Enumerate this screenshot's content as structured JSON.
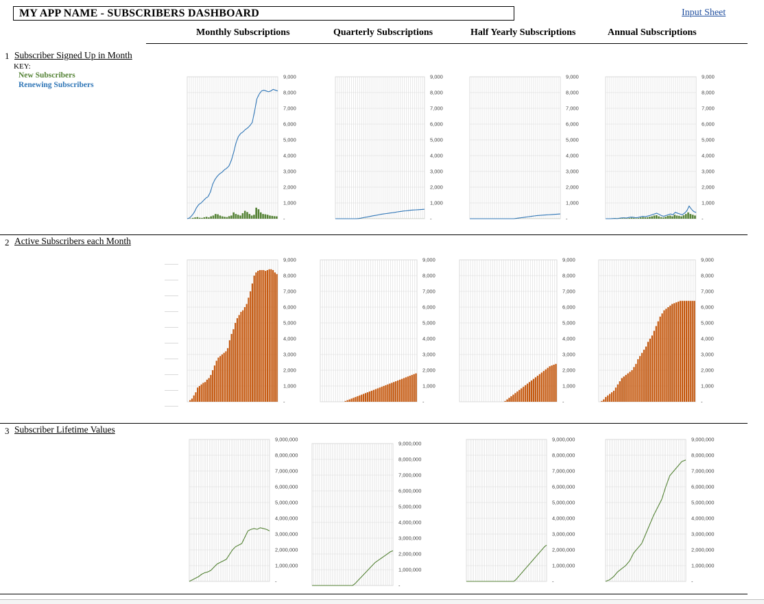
{
  "header": {
    "title": "MY APP NAME - SUBSCRIBERS DASHBOARD",
    "input_link": "Input Sheet"
  },
  "columns": [
    "Monthly Subscriptions",
    "Quarterly Subscriptions",
    "Half Yearly Subscriptions",
    "Annual Subscriptions"
  ],
  "sections": [
    {
      "num": "1",
      "title": "Subscriber Signed Up in  Month"
    },
    {
      "num": "2",
      "title": "Active Subscribers each Month"
    },
    {
      "num": "3",
      "title": "Subscriber Lifetime Values"
    }
  ],
  "key": {
    "label": "KEY:",
    "new": "New Subscribers",
    "renewing": "Renewing Subscribers"
  },
  "colors": {
    "new": "#548235",
    "renewing": "#2e75b6",
    "active": "#c55a11",
    "ltv": "#548235",
    "grid": "#d9d9d9"
  },
  "chart_data": [
    {
      "id": "signup-monthly",
      "type": "line",
      "ylim": [
        0,
        9000
      ],
      "yticks": [
        "9,000",
        "8,000",
        "7,000",
        "6,000",
        "5,000",
        "4,000",
        "3,000",
        "2,000",
        "1,000",
        "-"
      ],
      "series": [
        {
          "values": [
            0,
            50,
            200,
            400,
            700,
            900,
            1000,
            1150,
            1300,
            1400,
            1700,
            2200,
            2500,
            2700,
            2850,
            2950,
            3100,
            3200,
            3350,
            3700,
            4200,
            4800,
            5200,
            5400,
            5500,
            5650,
            5750,
            5900,
            6100,
            6800,
            7600,
            7900,
            8100,
            8150,
            8100,
            8050,
            8100,
            8200,
            8150,
            8100
          ]
        },
        {
          "type": "bar",
          "values": [
            0,
            20,
            50,
            80,
            100,
            60,
            50,
            90,
            120,
            80,
            150,
            200,
            300,
            280,
            200,
            150,
            120,
            100,
            160,
            200,
            400,
            300,
            250,
            200,
            350,
            500,
            420,
            300,
            200,
            250,
            700,
            600,
            400,
            300,
            280,
            250,
            200,
            180,
            160,
            150
          ]
        }
      ]
    },
    {
      "id": "signup-quarterly",
      "type": "line",
      "ylim": [
        0,
        9000
      ],
      "yticks": [
        "9,000",
        "8,000",
        "7,000",
        "6,000",
        "5,000",
        "4,000",
        "3,000",
        "2,000",
        "1,000",
        "-"
      ],
      "series": [
        {
          "values": [
            0,
            0,
            0,
            0,
            0,
            0,
            0,
            0,
            0,
            0,
            10,
            30,
            60,
            90,
            110,
            140,
            170,
            200,
            220,
            250,
            280,
            300,
            320,
            340,
            360,
            380,
            400,
            430,
            450,
            470,
            490,
            500,
            520,
            540,
            550,
            560,
            570,
            580,
            590,
            600
          ]
        },
        {
          "type": "bar",
          "values": [
            0,
            0,
            0,
            0,
            0,
            0,
            0,
            0,
            0,
            0,
            5,
            5,
            5,
            5,
            5,
            5,
            5,
            5,
            5,
            5,
            5,
            5,
            5,
            5,
            5,
            5,
            5,
            5,
            5,
            5,
            5,
            5,
            5,
            5,
            5,
            5,
            5,
            5,
            5,
            5
          ]
        }
      ]
    },
    {
      "id": "signup-halfyearly",
      "type": "line",
      "ylim": [
        0,
        9000
      ],
      "yticks": [
        "9,000",
        "8,000",
        "7,000",
        "6,000",
        "5,000",
        "4,000",
        "3,000",
        "2,000",
        "1,000",
        "-"
      ],
      "series": [
        {
          "values": [
            0,
            0,
            0,
            0,
            0,
            0,
            0,
            0,
            0,
            0,
            0,
            0,
            0,
            0,
            0,
            0,
            0,
            0,
            0,
            0,
            20,
            40,
            60,
            80,
            100,
            120,
            140,
            160,
            180,
            200,
            210,
            220,
            230,
            240,
            250,
            260,
            270,
            280,
            290,
            300
          ]
        },
        {
          "type": "bar",
          "values": [
            0,
            0,
            0,
            0,
            0,
            0,
            0,
            0,
            0,
            0,
            0,
            0,
            0,
            0,
            0,
            0,
            0,
            0,
            0,
            0,
            5,
            5,
            5,
            5,
            5,
            5,
            5,
            5,
            5,
            5,
            5,
            5,
            5,
            5,
            5,
            5,
            5,
            5,
            5,
            5
          ]
        }
      ]
    },
    {
      "id": "signup-annual",
      "type": "line",
      "ylim": [
        0,
        9000
      ],
      "yticks": [
        "9,000",
        "8,000",
        "7,000",
        "6,000",
        "5,000",
        "4,000",
        "3,000",
        "2,000",
        "1,000",
        "-"
      ],
      "series": [
        {
          "values": [
            0,
            0,
            0,
            10,
            20,
            10,
            30,
            50,
            60,
            40,
            80,
            100,
            90,
            60,
            80,
            120,
            150,
            130,
            160,
            200,
            250,
            300,
            350,
            280,
            200,
            150,
            200,
            250,
            300,
            250,
            400,
            350,
            300,
            250,
            350,
            500,
            800,
            600,
            450,
            400
          ]
        },
        {
          "type": "bar",
          "values": [
            0,
            0,
            0,
            5,
            10,
            5,
            20,
            30,
            30,
            20,
            40,
            60,
            50,
            30,
            40,
            80,
            100,
            80,
            90,
            120,
            150,
            200,
            220,
            150,
            100,
            80,
            120,
            180,
            200,
            150,
            250,
            200,
            180,
            150,
            220,
            300,
            400,
            300,
            250,
            200
          ]
        }
      ]
    },
    {
      "id": "active-monthly",
      "type": "bar",
      "ylim": [
        0,
        9000
      ],
      "yticks": [
        "9,000",
        "8,000",
        "7,000",
        "6,000",
        "5,000",
        "4,000",
        "3,000",
        "2,000",
        "1,000",
        "-"
      ],
      "values": [
        0,
        100,
        200,
        400,
        600,
        900,
        1000,
        1100,
        1200,
        1250,
        1400,
        1500,
        1700,
        2000,
        2300,
        2600,
        2800,
        2900,
        3000,
        3100,
        3200,
        3400,
        3900,
        4300,
        4600,
        5000,
        5300,
        5500,
        5700,
        5800,
        6000,
        6200,
        6600,
        7000,
        7500,
        8000,
        8200,
        8300,
        8350,
        8350,
        8350,
        8300,
        8350,
        8400,
        8400,
        8350,
        8200,
        8100
      ]
    },
    {
      "id": "active-quarterly",
      "type": "bar",
      "ylim": [
        0,
        9000
      ],
      "yticks": [
        "9,000",
        "8,000",
        "7,000",
        "6,000",
        "5,000",
        "4,000",
        "3,000",
        "2,000",
        "1,000",
        "-"
      ],
      "values": [
        0,
        0,
        0,
        0,
        0,
        0,
        0,
        0,
        0,
        0,
        0,
        0,
        50,
        100,
        150,
        200,
        250,
        300,
        350,
        400,
        450,
        500,
        550,
        600,
        650,
        700,
        750,
        800,
        850,
        900,
        950,
        1000,
        1050,
        1100,
        1150,
        1200,
        1250,
        1300,
        1350,
        1400,
        1450,
        1500,
        1550,
        1600,
        1650,
        1700,
        1750,
        1800
      ]
    },
    {
      "id": "active-halfyearly",
      "type": "bar",
      "ylim": [
        0,
        9000
      ],
      "yticks": [
        "9,000",
        "8,000",
        "7,000",
        "6,000",
        "5,000",
        "4,000",
        "3,000",
        "2,000",
        "1,000",
        "-"
      ],
      "values": [
        0,
        0,
        0,
        0,
        0,
        0,
        0,
        0,
        0,
        0,
        0,
        0,
        0,
        0,
        0,
        0,
        0,
        0,
        0,
        0,
        0,
        0,
        50,
        150,
        250,
        350,
        450,
        550,
        650,
        750,
        850,
        950,
        1050,
        1150,
        1250,
        1350,
        1450,
        1550,
        1650,
        1750,
        1850,
        1950,
        2050,
        2150,
        2250,
        2300,
        2350,
        2400
      ]
    },
    {
      "id": "active-annual",
      "type": "bar",
      "ylim": [
        0,
        9000
      ],
      "yticks": [
        "9,000",
        "8,000",
        "7,000",
        "6,000",
        "5,000",
        "4,000",
        "3,000",
        "2,000",
        "1,000",
        "-"
      ],
      "values": [
        0,
        50,
        150,
        300,
        400,
        500,
        600,
        700,
        900,
        1100,
        1300,
        1500,
        1600,
        1700,
        1800,
        1900,
        2000,
        2200,
        2400,
        2700,
        2900,
        3100,
        3300,
        3500,
        3800,
        4000,
        4200,
        4500,
        4800,
        5100,
        5400,
        5600,
        5800,
        5900,
        6000,
        6100,
        6200,
        6250,
        6300,
        6350,
        6400,
        6400,
        6400,
        6400,
        6400,
        6400,
        6400,
        6400
      ]
    },
    {
      "id": "ltv-monthly",
      "type": "line",
      "ylim": [
        0,
        9000000
      ],
      "yticks": [
        "9,000,000",
        "8,000,000",
        "7,000,000",
        "6,000,000",
        "5,000,000",
        "4,000,000",
        "3,000,000",
        "2,000,000",
        "1,000,000",
        "-"
      ],
      "values": [
        0,
        100000,
        200000,
        300000,
        450000,
        550000,
        600000,
        700000,
        900000,
        1100000,
        1200000,
        1300000,
        1400000,
        1700000,
        2000000,
        2200000,
        2300000,
        2400000,
        2800000,
        3200000,
        3300000,
        3350000,
        3300000,
        3400000,
        3350000,
        3300000,
        3200000
      ]
    },
    {
      "id": "ltv-quarterly",
      "type": "line",
      "ylim": [
        0,
        9000000
      ],
      "yticks": [
        "9,000,000",
        "8,000,000",
        "7,000,000",
        "6,000,000",
        "5,000,000",
        "4,000,000",
        "3,000,000",
        "2,000,000",
        "1,000,000",
        "-"
      ],
      "values": [
        0,
        0,
        0,
        0,
        0,
        0,
        0,
        0,
        0,
        0,
        0,
        0,
        0,
        0,
        0,
        0,
        0,
        0,
        0,
        100000,
        250000,
        400000,
        550000,
        700000,
        850000,
        1000000,
        1150000,
        1300000,
        1450000,
        1550000,
        1650000,
        1750000,
        1850000,
        1950000,
        2050000,
        2150000,
        2200000
      ]
    },
    {
      "id": "ltv-halfyearly",
      "type": "line",
      "ylim": [
        0,
        9000000
      ],
      "yticks": [
        "9,000,000",
        "8,000,000",
        "7,000,000",
        "6,000,000",
        "5,000,000",
        "4,000,000",
        "3,000,000",
        "2,000,000",
        "1,000,000",
        "-"
      ],
      "values": [
        0,
        0,
        0,
        0,
        0,
        0,
        0,
        0,
        0,
        0,
        0,
        0,
        0,
        0,
        0,
        0,
        0,
        0,
        0,
        0,
        0,
        0,
        0,
        0,
        100000,
        250000,
        400000,
        550000,
        700000,
        850000,
        1000000,
        1150000,
        1300000,
        1450000,
        1600000,
        1750000,
        1900000,
        2050000,
        2200000,
        2300000
      ]
    },
    {
      "id": "ltv-annual",
      "type": "line",
      "ylim": [
        0,
        9000000
      ],
      "yticks": [
        "9,000,000",
        "8,000,000",
        "7,000,000",
        "6,000,000",
        "5,000,000",
        "4,000,000",
        "3,000,000",
        "2,000,000",
        "1,000,000",
        "-"
      ],
      "values": [
        0,
        100000,
        300000,
        600000,
        800000,
        1000000,
        1300000,
        1800000,
        2100000,
        2400000,
        3000000,
        3600000,
        4200000,
        4700000,
        5200000,
        6000000,
        6700000,
        7000000,
        7300000,
        7600000,
        7700000
      ]
    }
  ]
}
